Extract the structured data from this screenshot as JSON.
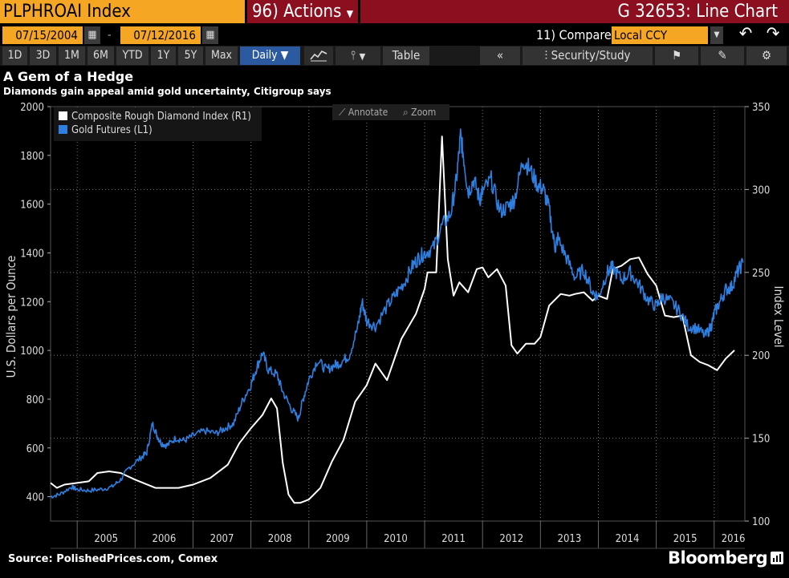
{
  "header": {
    "ticker": "PLPHROAI Index",
    "actions_label": "96) Actions",
    "function_label": "G 32653: Line Chart"
  },
  "controls": {
    "start_date": "07/15/2004",
    "end_date": "07/12/2016",
    "date_separator": "-",
    "compare_label": "11) Compare",
    "currency": "Local CCY",
    "periods": [
      "1D",
      "3D",
      "1M",
      "6M",
      "YTD",
      "1Y",
      "5Y",
      "Max"
    ],
    "frequency": "Daily",
    "table_label": "Table",
    "security_study_label": "Security/Study"
  },
  "chart_toolbar": {
    "annotate_label": "Annotate",
    "zoom_label": "Zoom"
  },
  "colors": {
    "orange": "#f5a623",
    "red": "#8b0f1e",
    "gold_series": "#2f7fe0",
    "diamond_series": "#ffffff",
    "selected_button": "#2c5aa0"
  },
  "chart_data": {
    "type": "line",
    "title": "A Gem of a Hedge",
    "subtitle": "Diamonds gain appeal amid gold uncertainty, Citigroup says",
    "xlabel": "",
    "ylabel_left": "U.S. Dollars per Ounce",
    "ylabel_right": "Index Level",
    "x_range": [
      2004.54,
      2016.53
    ],
    "ylim_left": [
      300,
      2000
    ],
    "ylim_right": [
      100,
      350
    ],
    "yticks_left": [
      400,
      600,
      800,
      1000,
      1200,
      1400,
      1600,
      1800,
      2000
    ],
    "yticks_right": [
      100,
      150,
      200,
      250,
      300,
      350
    ],
    "xtick_labels": [
      "2005",
      "2006",
      "2007",
      "2008",
      "2009",
      "2010",
      "2011",
      "2012",
      "2013",
      "2014",
      "2015",
      "2016"
    ],
    "grid": true,
    "legend_position": "top-left",
    "series": [
      {
        "name": "Composite Rough Diamond Index (R1)",
        "axis": "right",
        "x": [
          2004.54,
          2004.65,
          2004.78,
          2005.0,
          2005.2,
          2005.35,
          2005.55,
          2005.75,
          2006.0,
          2006.35,
          2006.75,
          2007.0,
          2007.3,
          2007.6,
          2007.8,
          2008.0,
          2008.2,
          2008.35,
          2008.45,
          2008.55,
          2008.65,
          2008.75,
          2008.85,
          2009.0,
          2009.2,
          2009.4,
          2009.6,
          2009.8,
          2010.0,
          2010.15,
          2010.35,
          2010.6,
          2010.85,
          2011.0,
          2011.05,
          2011.1,
          2011.2,
          2011.3,
          2011.4,
          2011.5,
          2011.6,
          2011.75,
          2011.9,
          2012.0,
          2012.1,
          2012.25,
          2012.4,
          2012.5,
          2012.6,
          2012.75,
          2012.9,
          2013.0,
          2013.15,
          2013.35,
          2013.5,
          2013.6,
          2013.75,
          2013.9,
          2014.0,
          2014.15,
          2014.25,
          2014.4,
          2014.55,
          2014.7,
          2014.85,
          2015.0,
          2015.15,
          2015.3,
          2015.45,
          2015.6,
          2015.75,
          2015.9,
          2016.05,
          2016.2,
          2016.35
        ],
        "values": [
          123,
          120,
          122,
          123,
          124,
          129,
          130,
          129,
          125,
          120,
          120,
          122,
          126,
          134,
          147,
          156,
          164,
          174,
          168,
          135,
          116,
          111,
          111,
          113,
          120,
          136,
          149,
          172,
          182,
          195,
          185,
          210,
          225,
          240,
          250,
          250,
          250,
          332,
          258,
          236,
          244,
          238,
          252,
          253,
          247,
          252,
          242,
          206,
          201,
          207,
          207,
          211,
          230,
          237,
          236,
          237,
          238,
          233,
          236,
          234,
          252,
          254,
          258,
          259,
          249,
          242,
          224,
          223,
          224,
          200,
          196,
          194,
          191,
          198,
          203
        ]
      },
      {
        "name": "Gold Futures (L1)",
        "axis": "left",
        "x": [
          2004.54,
          2004.7,
          2004.9,
          2005.0,
          2005.2,
          2005.4,
          2005.6,
          2005.75,
          2005.9,
          2006.1,
          2006.2,
          2006.3,
          2006.38,
          2006.45,
          2006.55,
          2006.7,
          2006.85,
          2007.0,
          2007.2,
          2007.4,
          2007.55,
          2007.7,
          2007.85,
          2008.0,
          2008.1,
          2008.2,
          2008.3,
          2008.45,
          2008.55,
          2008.7,
          2008.82,
          2008.9,
          2009.0,
          2009.15,
          2009.3,
          2009.45,
          2009.55,
          2009.7,
          2009.85,
          2009.92,
          2010.0,
          2010.15,
          2010.35,
          2010.5,
          2010.65,
          2010.8,
          2010.9,
          2011.0,
          2011.15,
          2011.3,
          2011.45,
          2011.55,
          2011.62,
          2011.67,
          2011.75,
          2011.85,
          2011.95,
          2012.0,
          2012.15,
          2012.3,
          2012.45,
          2012.55,
          2012.7,
          2012.8,
          2012.95,
          2013.05,
          2013.15,
          2013.25,
          2013.3,
          2013.45,
          2013.6,
          2013.75,
          2013.9,
          2014.0,
          2014.15,
          2014.25,
          2014.4,
          2014.55,
          2014.7,
          2014.85,
          2015.0,
          2015.1,
          2015.25,
          2015.4,
          2015.55,
          2015.7,
          2015.85,
          2015.95,
          2016.0,
          2016.1,
          2016.2,
          2016.3,
          2016.4,
          2016.5
        ],
        "values": [
          400,
          410,
          440,
          430,
          425,
          430,
          440,
          470,
          520,
          560,
          580,
          700,
          650,
          620,
          610,
          640,
          630,
          650,
          670,
          660,
          680,
          700,
          790,
          860,
          930,
          990,
          920,
          900,
          830,
          760,
          720,
          800,
          880,
          960,
          920,
          940,
          950,
          980,
          1100,
          1200,
          1120,
          1100,
          1180,
          1230,
          1280,
          1350,
          1380,
          1400,
          1420,
          1510,
          1560,
          1700,
          1880,
          1800,
          1650,
          1700,
          1620,
          1650,
          1700,
          1570,
          1590,
          1620,
          1780,
          1750,
          1680,
          1660,
          1580,
          1420,
          1460,
          1380,
          1300,
          1330,
          1240,
          1220,
          1320,
          1340,
          1290,
          1320,
          1270,
          1210,
          1180,
          1220,
          1200,
          1160,
          1100,
          1090,
          1060,
          1100,
          1150,
          1200,
          1250,
          1260,
          1320,
          1360
        ]
      }
    ]
  },
  "source": "Source: PolishedPrices.com, Comex",
  "brand": "Bloomberg"
}
